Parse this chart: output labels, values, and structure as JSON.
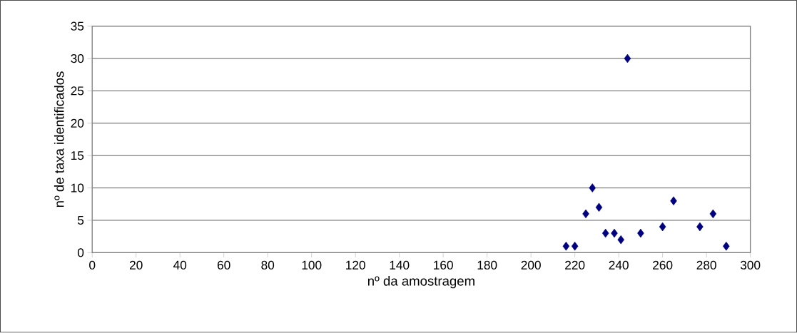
{
  "chart_data": {
    "type": "scatter",
    "xlabel": "nº da amostragem",
    "ylabel": "nº de taxa identificados",
    "marker": "diamond",
    "grid": "y",
    "x": [
      216,
      220,
      225,
      228,
      231,
      234,
      238,
      241,
      244,
      250,
      260,
      265,
      277,
      283,
      289
    ],
    "series": [
      {
        "color": "#000080",
        "values": [
          1,
          1,
          6,
          10,
          7,
          3,
          3,
          2,
          30,
          3,
          4,
          8,
          4,
          6,
          1
        ]
      }
    ],
    "xlim": [
      0,
      300
    ],
    "xticks": [
      0,
      20,
      40,
      60,
      80,
      100,
      120,
      140,
      160,
      180,
      200,
      220,
      240,
      260,
      280,
      300
    ],
    "ylim": [
      0,
      35
    ],
    "yticks": [
      0,
      5,
      10,
      15,
      20,
      25,
      30,
      35
    ]
  }
}
